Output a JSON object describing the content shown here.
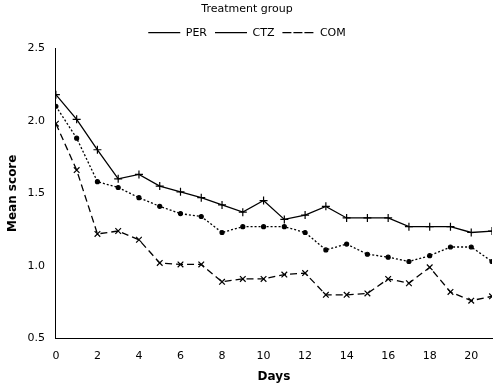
{
  "chart_data": {
    "type": "line",
    "legend_title": "Treatment group",
    "xlabel": "Days",
    "ylabel": "Mean score",
    "x": [
      0,
      1,
      2,
      3,
      4,
      5,
      6,
      7,
      8,
      9,
      10,
      11,
      12,
      13,
      14,
      15,
      16,
      17,
      18,
      19,
      20,
      21
    ],
    "series": [
      {
        "name": "PER",
        "color": "#000000",
        "marker": "dot",
        "line_style": "dotted",
        "values": [
          2.1,
          1.88,
          1.58,
          1.54,
          1.47,
          1.41,
          1.36,
          1.34,
          1.23,
          1.27,
          1.27,
          1.27,
          1.23,
          1.11,
          1.15,
          1.08,
          1.06,
          1.03,
          1.07,
          1.13,
          1.13,
          1.03
        ]
      },
      {
        "name": "CTZ",
        "color": "#000000",
        "marker": "plus",
        "line_style": "solid",
        "values": [
          2.18,
          2.01,
          1.8,
          1.6,
          1.63,
          1.55,
          1.51,
          1.47,
          1.42,
          1.37,
          1.45,
          1.32,
          1.35,
          1.41,
          1.33,
          1.33,
          1.33,
          1.27,
          1.27,
          1.27,
          1.23,
          1.24
        ]
      },
      {
        "name": "COM",
        "color": "#000000",
        "marker": "x",
        "line_style": "dashed",
        "values": [
          1.98,
          1.66,
          1.22,
          1.24,
          1.18,
          1.02,
          1.01,
          1.01,
          0.89,
          0.91,
          0.91,
          0.94,
          0.95,
          0.8,
          0.8,
          0.81,
          0.91,
          0.88,
          0.99,
          0.82,
          0.76,
          0.79
        ]
      }
    ],
    "xlim": [
      0,
      21
    ],
    "xticks": [
      0,
      2,
      4,
      6,
      8,
      10,
      12,
      14,
      16,
      18,
      20
    ],
    "ylim": [
      0.5,
      2.5
    ],
    "yticks": [
      0.5,
      {
        "value": 1,
        "label": "1.0"
      },
      1.5,
      {
        "value": 2,
        "label": "2.0"
      },
      2.5
    ],
    "grid": false,
    "legend": "top"
  }
}
